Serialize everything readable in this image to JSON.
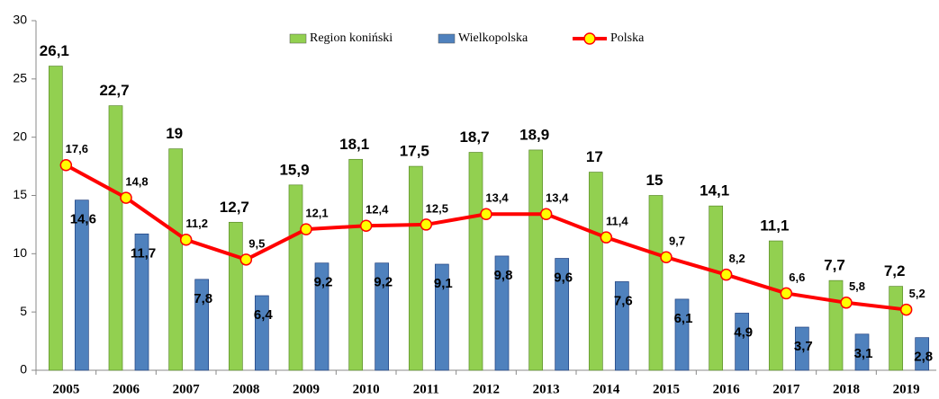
{
  "chart_data": {
    "type": "bar-line",
    "categories": [
      "2005",
      "2006",
      "2007",
      "2008",
      "2009",
      "2010",
      "2011",
      "2012",
      "2013",
      "2014",
      "2015",
      "2016",
      "2017",
      "2018",
      "2019"
    ],
    "series": [
      {
        "name": "Region koniński",
        "type": "bar",
        "color": "#92d050",
        "values": [
          26.1,
          22.7,
          19,
          12.7,
          15.9,
          18.1,
          17.5,
          18.7,
          18.9,
          17,
          15,
          14.1,
          11.1,
          7.7,
          7.2
        ],
        "value_labels": [
          "26,1",
          "22,7",
          "19",
          "12,7",
          "15,9",
          "18,1",
          "17,5",
          "18,7",
          "18,9",
          "17",
          "15",
          "14,1",
          "11,1",
          "7,7",
          "7,2"
        ]
      },
      {
        "name": "Wielkopolska",
        "type": "bar",
        "color": "#4f81bd",
        "values": [
          14.6,
          11.7,
          7.8,
          6.4,
          9.2,
          9.2,
          9.1,
          9.8,
          9.6,
          7.6,
          6.1,
          4.9,
          3.7,
          3.1,
          2.8
        ],
        "value_labels": [
          "14,6",
          "11,7",
          "7,8",
          "6,4",
          "9,2",
          "9,2",
          "9,1",
          "9,8",
          "9,6",
          "7,6",
          "6,1",
          "4,9",
          "3,7",
          "3,1",
          "2,8"
        ]
      },
      {
        "name": "Polska",
        "type": "line",
        "color": "#ff0000",
        "marker_color": "#ffff00",
        "values": [
          17.6,
          14.8,
          11.2,
          9.5,
          12.1,
          12.4,
          12.5,
          13.4,
          13.4,
          11.4,
          9.7,
          8.2,
          6.6,
          5.8,
          5.2
        ],
        "value_labels": [
          "17,6",
          "14,8",
          "11,2",
          "9,5",
          "12,1",
          "12,4",
          "12,5",
          "13,4",
          "13,4",
          "11,4",
          "9,7",
          "8,2",
          "6,6",
          "5,8",
          "5,2"
        ]
      }
    ],
    "ylim": [
      0,
      30
    ],
    "yticks": [
      0,
      5,
      10,
      15,
      20,
      25,
      30
    ],
    "legend": "top"
  }
}
